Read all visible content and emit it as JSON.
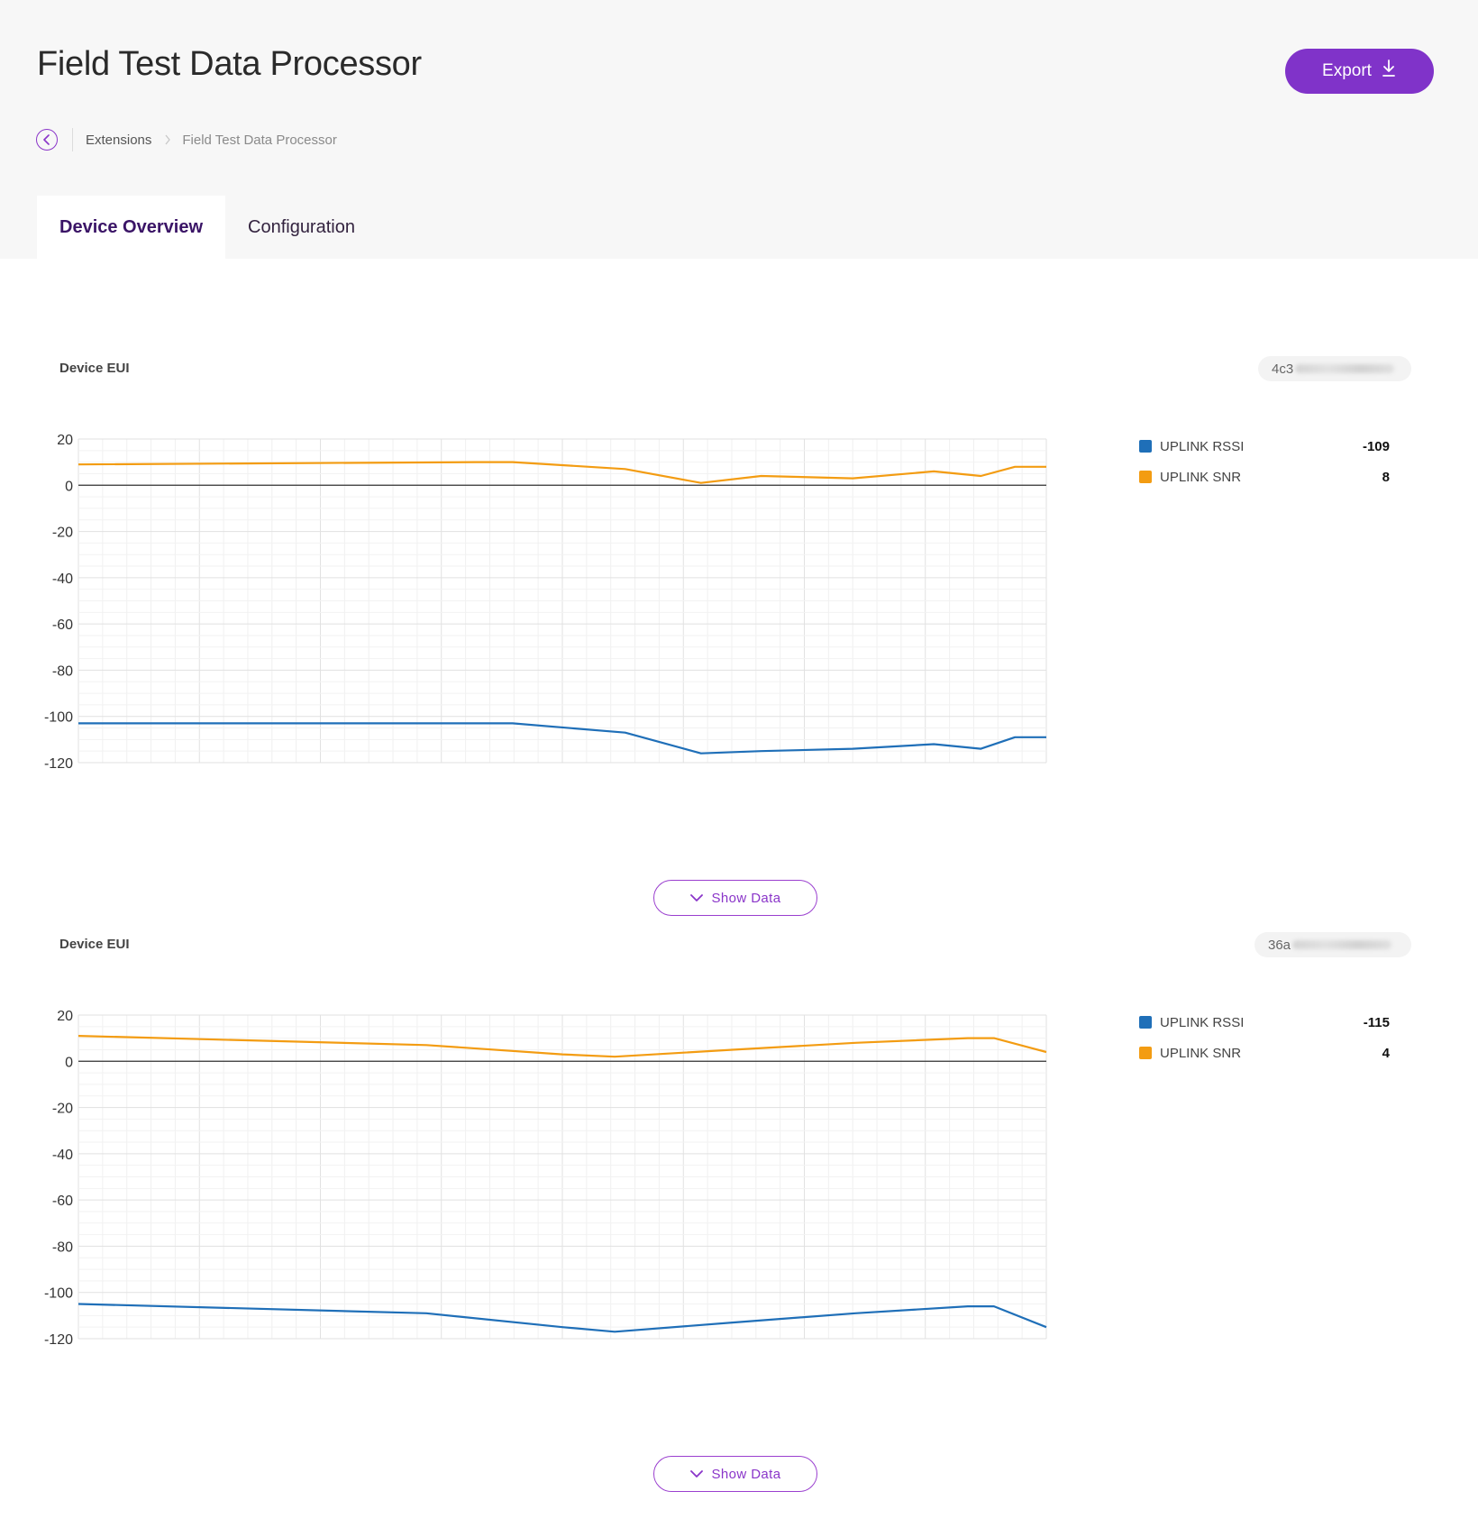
{
  "header": {
    "title": "Field Test Data Processor",
    "export_label": "Export"
  },
  "breadcrumb": {
    "items": [
      "Extensions",
      "Field Test Data Processor"
    ]
  },
  "tabs": [
    {
      "label": "Device Overview",
      "active": true
    },
    {
      "label": "Configuration",
      "active": false
    }
  ],
  "colors": {
    "accent": "#8033c9",
    "rssi": "#1f6fb8",
    "snr": "#f39c12"
  },
  "panels": [
    {
      "eui_label": "Device EUI",
      "eui_value": "4c3",
      "legend": [
        {
          "name": "UPLINK RSSI",
          "value": "-109",
          "color": "#1f6fb8"
        },
        {
          "name": "UPLINK SNR",
          "value": "8",
          "color": "#f39c12"
        }
      ],
      "show_data_label": "Show Data"
    },
    {
      "eui_label": "Device EUI",
      "eui_value": "36a",
      "legend": [
        {
          "name": "UPLINK RSSI",
          "value": "-115",
          "color": "#1f6fb8"
        },
        {
          "name": "UPLINK SNR",
          "value": "4",
          "color": "#f39c12"
        }
      ],
      "show_data_label": "Show Data"
    }
  ],
  "chart_data": [
    {
      "type": "line",
      "ylim": [
        -120,
        20
      ],
      "yticks": [
        20,
        0,
        -20,
        -40,
        -60,
        -80,
        -100,
        -120
      ],
      "grid": true,
      "legend_position": "right",
      "x": [
        0,
        15.2,
        16.6,
        20.9,
        23.8,
        26.1,
        29.6,
        32.7,
        34.5,
        35.8,
        37.0
      ],
      "series": [
        {
          "name": "UPLINK RSSI",
          "color": "#1f6fb8",
          "values": [
            -103,
            -103,
            -103,
            -107,
            -116,
            -115,
            -114,
            -112,
            -114,
            -109,
            -109
          ]
        },
        {
          "name": "UPLINK SNR",
          "color": "#f39c12",
          "values": [
            9,
            10,
            10,
            7,
            1,
            4,
            3,
            6,
            4,
            8,
            8
          ]
        }
      ]
    },
    {
      "type": "line",
      "ylim": [
        -120,
        20
      ],
      "yticks": [
        20,
        0,
        -20,
        -40,
        -60,
        -80,
        -100,
        -120
      ],
      "grid": true,
      "legend_position": "right",
      "x": [
        0,
        13.3,
        18.5,
        20.5,
        25.0,
        29.7,
        34.0,
        35.0,
        37.0
      ],
      "series": [
        {
          "name": "UPLINK RSSI",
          "color": "#1f6fb8",
          "values": [
            -105,
            -109,
            -115,
            -117,
            -113,
            -109,
            -106,
            -106,
            -115
          ]
        },
        {
          "name": "UPLINK SNR",
          "color": "#f39c12",
          "values": [
            11,
            7,
            3,
            2,
            5,
            8,
            10,
            10,
            4
          ]
        }
      ]
    }
  ]
}
